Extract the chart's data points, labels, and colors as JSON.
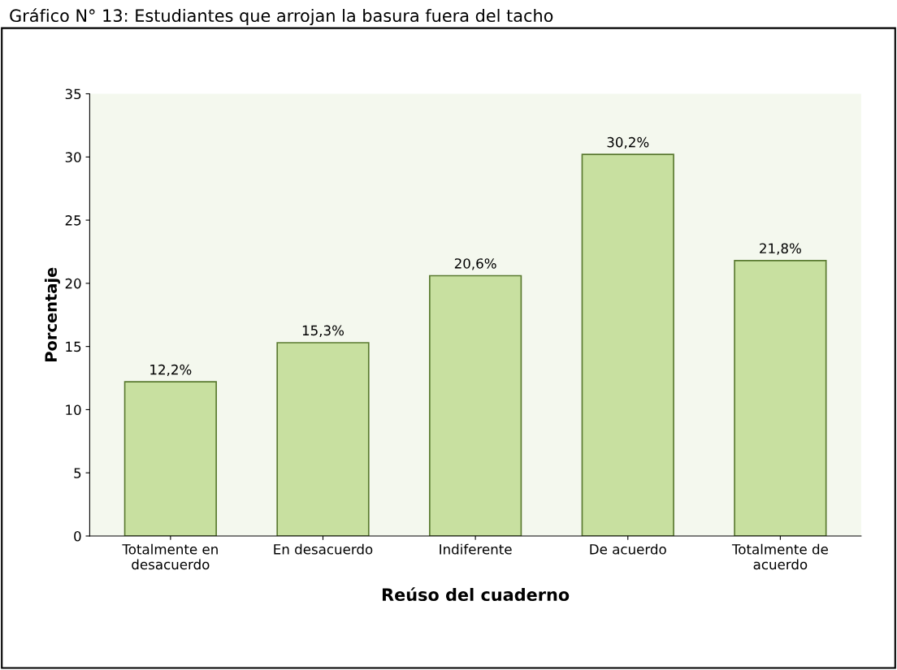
{
  "chart_data": {
    "type": "bar",
    "title": "Gráfico N° 13: Estudiantes que arrojan la basura fuera del tacho",
    "xlabel": "Reúso del cuaderno",
    "ylabel": "Porcentaje",
    "categories": [
      "Totalmente en\ndesacuerdo",
      "En desacuerdo",
      "Indiferente",
      "De acuerdo",
      "Totalmente de\nacuerdo"
    ],
    "values": [
      12.2,
      15.3,
      20.6,
      30.2,
      21.8
    ],
    "value_labels": [
      "12,2%",
      "15,3%",
      "20,6%",
      "30,2%",
      "21,8%"
    ],
    "color": "#c8e0a0",
    "ylim": [
      0,
      35
    ],
    "yticks": [
      0,
      5,
      10,
      15,
      20,
      25,
      30,
      35
    ],
    "grid": false
  }
}
